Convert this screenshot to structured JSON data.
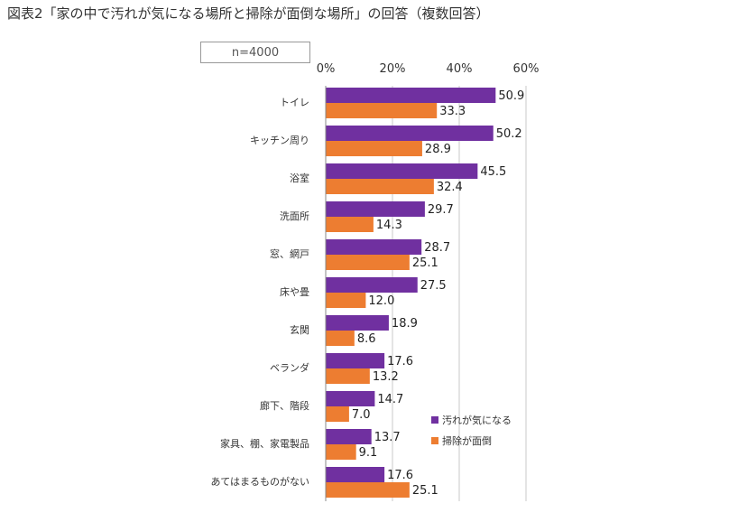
{
  "title": "図表2「家の中で汚れが気になる場所と掃除が面倒な場所」の回答（複数回答）",
  "sample_label": "n=4000",
  "colors": {
    "series1": "#7030a0",
    "series2": "#ed7d31"
  },
  "chart_data": {
    "type": "bar",
    "orientation": "horizontal",
    "title": "図表2「家の中で汚れが気になる場所と掃除が面倒な場所」の回答（複数回答）",
    "categories": [
      "トイレ",
      "キッチン周り",
      "浴室",
      "洗面所",
      "窓、網戸",
      "床や畳",
      "玄関",
      "ベランダ",
      "廊下、階段",
      "家具、棚、家電製品",
      "あてはまるものがない"
    ],
    "series": [
      {
        "name": "汚れが気になる",
        "values": [
          50.9,
          50.2,
          45.5,
          29.7,
          28.7,
          27.5,
          18.9,
          17.6,
          14.7,
          13.7,
          17.6
        ]
      },
      {
        "name": "掃除が面倒",
        "values": [
          33.3,
          28.9,
          32.4,
          14.3,
          25.1,
          12.0,
          8.6,
          13.2,
          7.0,
          9.1,
          25.1
        ]
      }
    ],
    "x_ticks": [
      "0%",
      "20%",
      "40%",
      "60%"
    ],
    "xlim": [
      0,
      60
    ],
    "grid": true,
    "legend": "bottom-right"
  }
}
